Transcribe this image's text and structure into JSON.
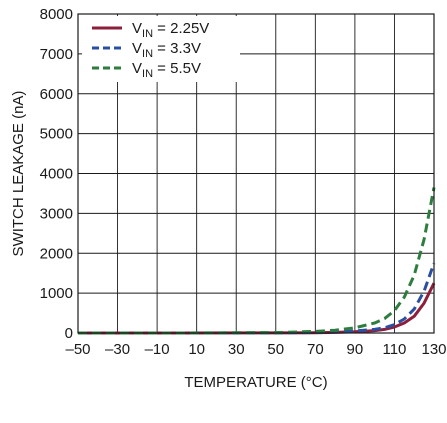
{
  "chart_data": {
    "type": "line",
    "xlabel": "TEMPERATURE (°C)",
    "ylabel": "SWITCH LEAKAGE (nA)",
    "xlim": [
      -50,
      130
    ],
    "ylim": [
      0,
      8000
    ],
    "x_ticks": [
      -50,
      -30,
      -10,
      10,
      30,
      50,
      70,
      90,
      110,
      130
    ],
    "x_tick_labels": [
      "–50",
      "–30",
      "–10",
      "10",
      "30",
      "50",
      "70",
      "90",
      "110",
      "130"
    ],
    "y_ticks": [
      0,
      1000,
      2000,
      3000,
      4000,
      5000,
      6000,
      7000,
      8000
    ],
    "y_tick_labels": [
      "0",
      "1000",
      "2000",
      "3000",
      "4000",
      "5000",
      "6000",
      "7000",
      "8000"
    ],
    "grid": true,
    "legend_position": "top-left",
    "series": [
      {
        "name_main": "V",
        "name_sub": "IN",
        "name_rest": " = 2.25V",
        "color": "#8c1f3c",
        "dash": "solid",
        "points": [
          [
            -50,
            0
          ],
          [
            0,
            0
          ],
          [
            50,
            2
          ],
          [
            70,
            8
          ],
          [
            80,
            15
          ],
          [
            90,
            30
          ],
          [
            100,
            60
          ],
          [
            105,
            90
          ],
          [
            110,
            150
          ],
          [
            115,
            250
          ],
          [
            120,
            420
          ],
          [
            125,
            750
          ],
          [
            130,
            1250
          ]
        ]
      },
      {
        "name_main": "V",
        "name_sub": "IN",
        "name_rest": " = 3.3V",
        "color": "#2a4fa0",
        "dash": "dashed",
        "points": [
          [
            -50,
            0
          ],
          [
            0,
            0
          ],
          [
            50,
            3
          ],
          [
            70,
            12
          ],
          [
            80,
            25
          ],
          [
            90,
            50
          ],
          [
            100,
            90
          ],
          [
            105,
            130
          ],
          [
            110,
            210
          ],
          [
            115,
            350
          ],
          [
            120,
            600
          ],
          [
            125,
            1050
          ],
          [
            130,
            1750
          ]
        ]
      },
      {
        "name_main": "V",
        "name_sub": "IN",
        "name_rest": " = 5.5V",
        "color": "#2e7d3e",
        "dash": "dashed",
        "points": [
          [
            -50,
            0
          ],
          [
            0,
            0
          ],
          [
            50,
            10
          ],
          [
            70,
            40
          ],
          [
            80,
            70
          ],
          [
            90,
            130
          ],
          [
            100,
            250
          ],
          [
            105,
            360
          ],
          [
            110,
            560
          ],
          [
            115,
            900
          ],
          [
            120,
            1450
          ],
          [
            125,
            2350
          ],
          [
            130,
            3650
          ]
        ]
      }
    ]
  }
}
